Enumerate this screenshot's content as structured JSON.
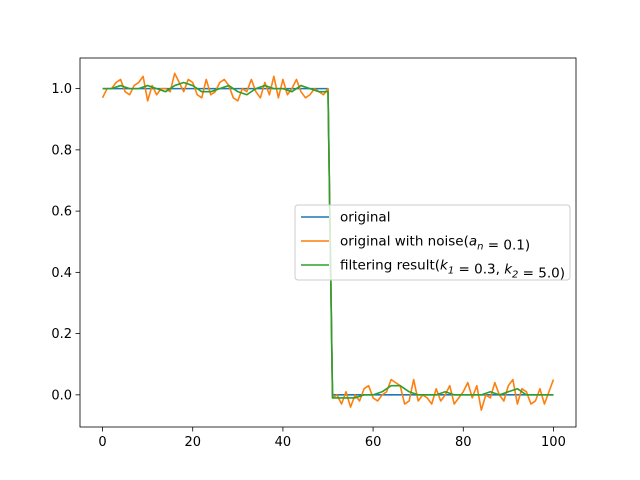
{
  "chart_data": {
    "type": "line",
    "title": "",
    "xlabel": "",
    "ylabel": "",
    "xlim": [
      -5,
      105
    ],
    "ylim": [
      -0.105,
      1.1
    ],
    "grid": false,
    "legend_position": "center-right",
    "x_ticks": [
      0,
      20,
      40,
      60,
      80,
      100
    ],
    "x_tick_labels": [
      "0",
      "20",
      "40",
      "60",
      "80",
      "100"
    ],
    "y_ticks": [
      0.0,
      0.2,
      0.4,
      0.6,
      0.8,
      1.0
    ],
    "y_tick_labels": [
      "0.0",
      "0.2",
      "0.4",
      "0.6",
      "0.8",
      "1.0"
    ],
    "series": [
      {
        "name": "original",
        "color": "#1f77b4",
        "x": [
          0,
          50,
          51,
          100
        ],
        "y": [
          1.0,
          1.0,
          0.0,
          0.0
        ]
      },
      {
        "name": "original with noise(a_n = 0.1)",
        "color": "#ff7f0e",
        "x": [
          0,
          1,
          2,
          3,
          4,
          5,
          6,
          7,
          8,
          9,
          10,
          11,
          12,
          13,
          14,
          15,
          16,
          17,
          18,
          19,
          20,
          21,
          22,
          23,
          24,
          25,
          26,
          27,
          28,
          29,
          30,
          31,
          32,
          33,
          34,
          35,
          36,
          37,
          38,
          39,
          40,
          41,
          42,
          43,
          44,
          45,
          46,
          47,
          48,
          49,
          50,
          51,
          52,
          53,
          54,
          55,
          56,
          57,
          58,
          59,
          60,
          61,
          62,
          63,
          64,
          65,
          66,
          67,
          68,
          69,
          70,
          71,
          72,
          73,
          74,
          75,
          76,
          77,
          78,
          79,
          80,
          81,
          82,
          83,
          84,
          85,
          86,
          87,
          88,
          89,
          90,
          91,
          92,
          93,
          94,
          95,
          96,
          97,
          98,
          99,
          100
        ],
        "y": [
          0.97,
          1.0,
          1.0,
          1.02,
          1.03,
          0.99,
          0.98,
          1.01,
          1.02,
          1.04,
          0.96,
          1.01,
          0.98,
          1.0,
          1.0,
          0.99,
          1.05,
          1.02,
          0.99,
          1.03,
          1.02,
          0.98,
          0.97,
          1.03,
          0.98,
          0.99,
          1.02,
          1.03,
          1.01,
          0.97,
          0.96,
          1.0,
          0.99,
          1.03,
          0.99,
          0.97,
          1.02,
          0.98,
          1.04,
          0.97,
          1.03,
          0.98,
          1.0,
          1.03,
          0.99,
          0.97,
          0.98,
          1.0,
          0.99,
          0.98,
          1.0,
          -0.01,
          0.0,
          -0.03,
          0.01,
          -0.04,
          0.0,
          -0.02,
          0.02,
          0.03,
          -0.01,
          -0.02,
          0.0,
          0.01,
          0.05,
          0.04,
          0.03,
          -0.03,
          -0.02,
          0.05,
          -0.02,
          0.0,
          -0.01,
          -0.03,
          0.02,
          -0.02,
          0.0,
          0.03,
          -0.03,
          -0.01,
          0.01,
          0.04,
          -0.01,
          0.03,
          -0.05,
          0.0,
          -0.01,
          0.04,
          0.0,
          -0.02,
          0.03,
          0.05,
          -0.03,
          0.02,
          0.01,
          -0.03,
          -0.02,
          0.02,
          -0.03,
          0.01,
          0.05
        ]
      },
      {
        "name": "filtering result(k_1 = 0.3, k_2 = 5.0)",
        "color": "#2ca02c",
        "x": [
          0,
          2,
          4,
          6,
          8,
          10,
          12,
          14,
          16,
          18,
          20,
          22,
          24,
          26,
          28,
          30,
          32,
          34,
          36,
          38,
          40,
          42,
          44,
          46,
          48,
          50,
          51,
          52,
          54,
          56,
          58,
          60,
          62,
          64,
          66,
          68,
          70,
          72,
          74,
          76,
          78,
          80,
          82,
          84,
          86,
          88,
          90,
          92,
          94,
          96,
          98,
          100
        ],
        "y": [
          1.0,
          1.0,
          1.01,
          1.0,
          1.0,
          1.01,
          1.0,
          0.99,
          1.01,
          1.02,
          1.01,
          0.99,
          0.99,
          1.0,
          1.01,
          0.99,
          0.98,
          1.0,
          1.01,
          1.0,
          1.0,
          0.99,
          1.01,
          1.0,
          0.99,
          0.99,
          -0.01,
          -0.01,
          -0.01,
          -0.01,
          0.0,
          0.0,
          0.01,
          0.03,
          0.03,
          0.01,
          0.0,
          0.0,
          0.0,
          0.01,
          0.0,
          0.0,
          0.0,
          0.0,
          0.01,
          0.0,
          0.01,
          0.02,
          0.0,
          0.0,
          0.0,
          0.0
        ]
      }
    ]
  }
}
